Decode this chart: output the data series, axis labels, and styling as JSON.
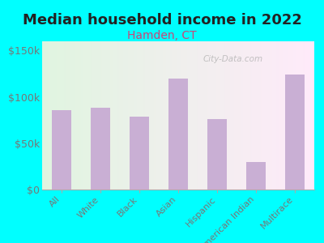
{
  "title": "Median household income in 2022",
  "subtitle": "Hamden, CT",
  "categories": [
    "All",
    "White",
    "Black",
    "Asian",
    "Hispanic",
    "American Indian",
    "Multirace"
  ],
  "values": [
    86000,
    88000,
    79000,
    120000,
    76000,
    30000,
    124000
  ],
  "bar_color": "#c9afd4",
  "title_fontsize": 13,
  "subtitle_fontsize": 10,
  "tick_label_fontsize": 8,
  "ytick_fontsize": 9,
  "background_outer": "#00FFFF",
  "tick_color": "#777777",
  "subtitle_color": "#cc4477",
  "title_color": "#222222",
  "watermark": "City-Data.com",
  "ylim": [
    0,
    160000
  ],
  "yticks": [
    0,
    50000,
    100000,
    150000
  ],
  "ytick_labels": [
    "$0",
    "$50k",
    "$100k",
    "$150k"
  ]
}
